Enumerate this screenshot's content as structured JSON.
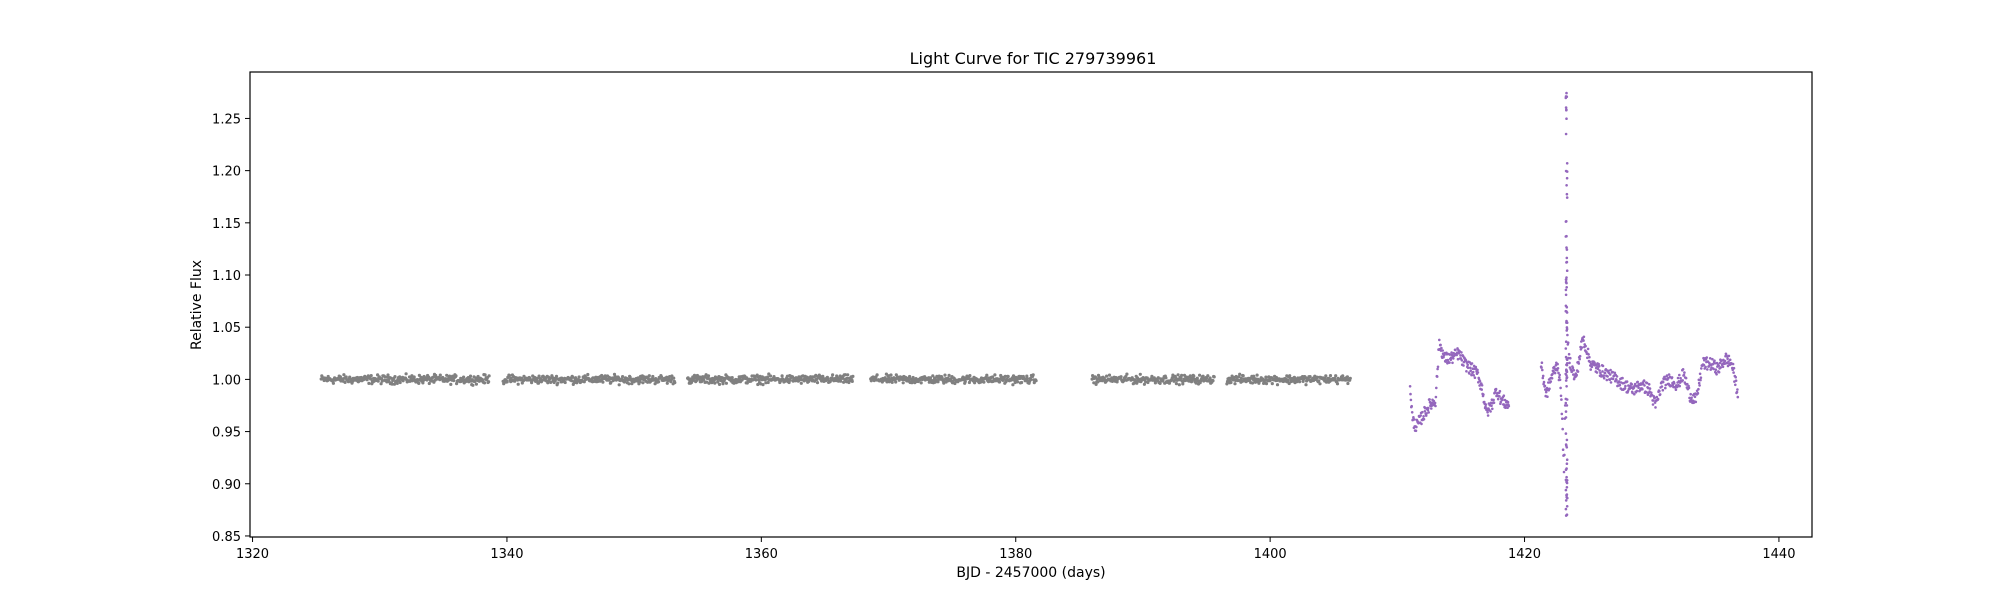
{
  "chart_data": {
    "type": "scatter",
    "title": "Light Curve for TIC 279739961",
    "xlabel": "BJD - 2457000 (days)",
    "ylabel": "Relative Flux",
    "xlim": [
      1319.8,
      1442.6
    ],
    "ylim": [
      0.849,
      1.2945
    ],
    "xticks": [
      1320,
      1340,
      1360,
      1380,
      1400,
      1420,
      1440
    ],
    "yticks": [
      0.85,
      0.9,
      0.95,
      1.0,
      1.05,
      1.1,
      1.15,
      1.2,
      1.25
    ],
    "grid": false,
    "legend": "none",
    "colors": {
      "sector_a": "#808080",
      "sector_b": "#9467bd"
    },
    "series": [
      {
        "color": "#808080",
        "segments": [
          {
            "x_start": 1325.4,
            "x_end": 1338.6,
            "flux": 1.0,
            "scatter": 0.004
          },
          {
            "x_start": 1339.7,
            "x_end": 1353.2,
            "flux": 1.0,
            "scatter": 0.004
          },
          {
            "x_start": 1354.2,
            "x_end": 1367.2,
            "flux": 1.0,
            "scatter": 0.004
          },
          {
            "x_start": 1368.6,
            "x_end": 1381.6,
            "flux": 1.0,
            "scatter": 0.004
          },
          {
            "x_start": 1386.0,
            "x_end": 1395.6,
            "flux": 1.0,
            "scatter": 0.004
          },
          {
            "x_start": 1396.6,
            "x_end": 1406.3,
            "flux": 1.0,
            "scatter": 0.004
          }
        ]
      },
      {
        "color": "#9467bd",
        "points": [
          [
            1411.0,
            0.995
          ],
          [
            1411.2,
            0.96
          ],
          [
            1411.5,
            0.955
          ],
          [
            1412.0,
            0.965
          ],
          [
            1412.5,
            0.975
          ],
          [
            1413.0,
            0.98
          ],
          [
            1413.3,
            1.035
          ],
          [
            1413.7,
            1.02
          ],
          [
            1414.2,
            1.02
          ],
          [
            1414.8,
            1.025
          ],
          [
            1415.3,
            1.015
          ],
          [
            1415.8,
            1.01
          ],
          [
            1416.3,
            1.005
          ],
          [
            1416.7,
            0.99
          ],
          [
            1417.0,
            0.968
          ],
          [
            1417.4,
            0.975
          ],
          [
            1417.8,
            0.99
          ],
          [
            1418.2,
            0.98
          ],
          [
            1418.8,
            0.975
          ],
          [
            1421.3,
            1.015
          ],
          [
            1421.7,
            0.985
          ],
          [
            1422.2,
            1.005
          ],
          [
            1422.6,
            1.015
          ],
          [
            1422.9,
            0.985
          ],
          [
            1423.1,
            0.91
          ],
          [
            1423.3,
            1.05
          ],
          [
            1423.5,
            1.02
          ],
          [
            1424.0,
            1.0
          ],
          [
            1424.6,
            1.04
          ],
          [
            1425.2,
            1.015
          ],
          [
            1425.8,
            1.01
          ],
          [
            1426.5,
            1.005
          ],
          [
            1427.2,
            1.0
          ],
          [
            1427.8,
            0.995
          ],
          [
            1428.5,
            0.99
          ],
          [
            1429.2,
            0.995
          ],
          [
            1429.8,
            0.99
          ],
          [
            1430.3,
            0.975
          ],
          [
            1430.8,
            0.995
          ],
          [
            1431.4,
            1.0
          ],
          [
            1432.0,
            0.995
          ],
          [
            1432.5,
            1.005
          ],
          [
            1433.0,
            0.985
          ],
          [
            1433.5,
            0.98
          ],
          [
            1434.0,
            1.015
          ],
          [
            1434.6,
            1.015
          ],
          [
            1435.2,
            1.01
          ],
          [
            1435.8,
            1.02
          ],
          [
            1436.3,
            1.015
          ],
          [
            1436.8,
            0.985
          ]
        ],
        "flare": {
          "x": 1423.3,
          "flux_min": 0.868,
          "flux_max": 1.278
        }
      }
    ]
  }
}
